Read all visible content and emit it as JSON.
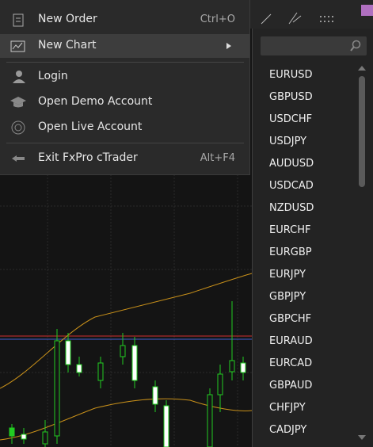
{
  "menu": {
    "items": [
      {
        "label": "New Order",
        "shortcut": "Ctrl+O"
      },
      {
        "label": "New Chart"
      },
      {
        "label": "Login"
      },
      {
        "label": "Open Demo Account"
      },
      {
        "label": "Open Live Account"
      },
      {
        "label": "Exit FxPro cTrader",
        "shortcut": "Alt+F4"
      }
    ]
  },
  "submenu": {
    "symbols": [
      "EURUSD",
      "GBPUSD",
      "USDCHF",
      "USDJPY",
      "AUDUSD",
      "USDCAD",
      "NZDUSD",
      "EURCHF",
      "EURGBP",
      "EURJPY",
      "GBPJPY",
      "GBPCHF",
      "EURAUD",
      "EURCAD",
      "GBPAUD",
      "CHFJPY",
      "CADJPY"
    ]
  }
}
